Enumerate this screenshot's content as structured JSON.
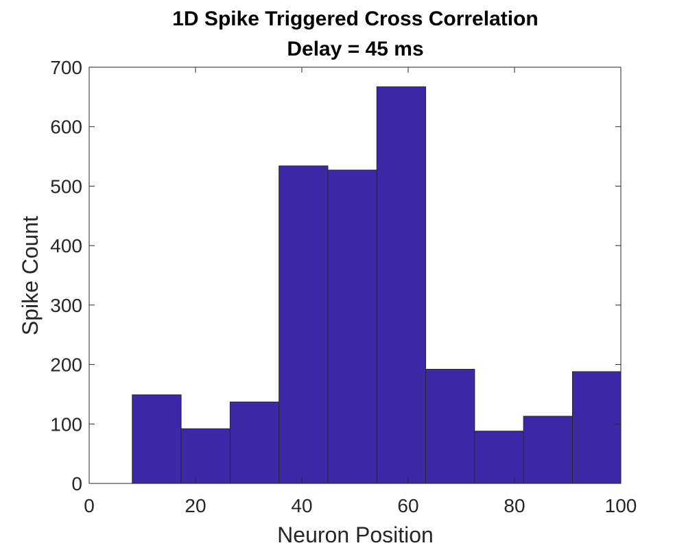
{
  "chart_data": {
    "type": "bar",
    "title": "1D Spike Triggered Cross Correlation",
    "subtitle": "Delay = 45 ms",
    "xlabel": "Neuron Position",
    "ylabel": "Spike Count",
    "xlim": [
      0,
      100
    ],
    "ylim": [
      0,
      700
    ],
    "xticks": [
      "0",
      "20",
      "40",
      "60",
      "80",
      "100"
    ],
    "yticks": [
      "0",
      "100",
      "200",
      "300",
      "400",
      "500",
      "600",
      "700"
    ],
    "bins": [
      {
        "x0": 8.1,
        "x1": 17.3,
        "value": 149
      },
      {
        "x0": 17.3,
        "x1": 26.5,
        "value": 92
      },
      {
        "x0": 26.5,
        "x1": 35.7,
        "value": 137
      },
      {
        "x0": 35.7,
        "x1": 44.9,
        "value": 534
      },
      {
        "x0": 44.9,
        "x1": 54.1,
        "value": 527
      },
      {
        "x0": 54.1,
        "x1": 63.3,
        "value": 667
      },
      {
        "x0": 63.3,
        "x1": 72.5,
        "value": 192
      },
      {
        "x0": 72.5,
        "x1": 81.7,
        "value": 88
      },
      {
        "x0": 81.7,
        "x1": 90.9,
        "value": 113
      },
      {
        "x0": 90.9,
        "x1": 100.0,
        "value": 188
      }
    ],
    "grid": false,
    "colors": {
      "bar_fill": "#3c28a6",
      "bar_edge": "#262626",
      "axis": "#262626"
    }
  }
}
